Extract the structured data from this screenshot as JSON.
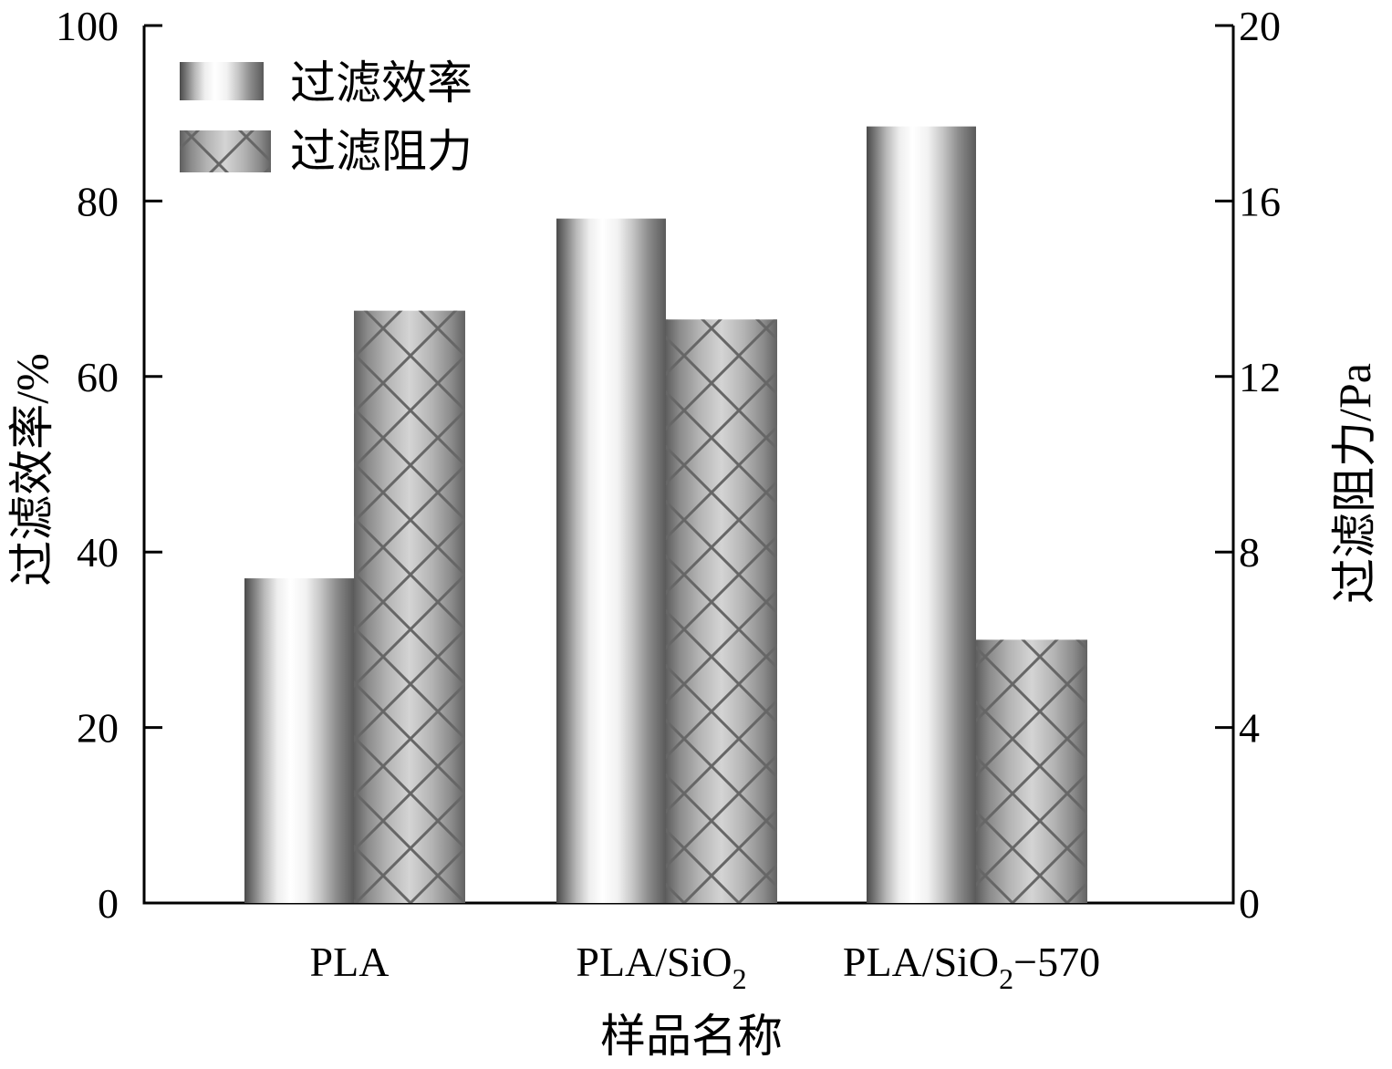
{
  "chart_data": {
    "type": "bar",
    "categories": [
      {
        "main": "PLA",
        "sub": "",
        "tail": ""
      },
      {
        "main": "PLA/SiO",
        "sub": "2",
        "tail": ""
      },
      {
        "main": "PLA/SiO",
        "sub": "2",
        "tail": "−570"
      }
    ],
    "series": [
      {
        "name": "过滤效率",
        "axis": "left",
        "values": [
          37,
          78,
          88.5
        ],
        "pattern": "cylinder"
      },
      {
        "name": "过滤阻力",
        "axis": "right",
        "values": [
          13.5,
          13.3,
          6
        ],
        "pattern": "cross-hatch"
      }
    ],
    "xlabel": "样品名称",
    "ylabel_left": "过滤效率/%",
    "ylabel_right": "过滤阻力/Pa",
    "ylim_left": [
      0,
      100
    ],
    "ylim_right": [
      0,
      20
    ],
    "yticks_left": [
      0,
      20,
      40,
      60,
      80,
      100
    ],
    "yticks_right": [
      0,
      4,
      8,
      12,
      16,
      20
    ],
    "legend": "top-left",
    "grid": false,
    "colors": {
      "axis": "#000000",
      "bar_dark": "#555555",
      "bar_light": "#ffffff",
      "hatch": "#6e6e6e"
    }
  }
}
